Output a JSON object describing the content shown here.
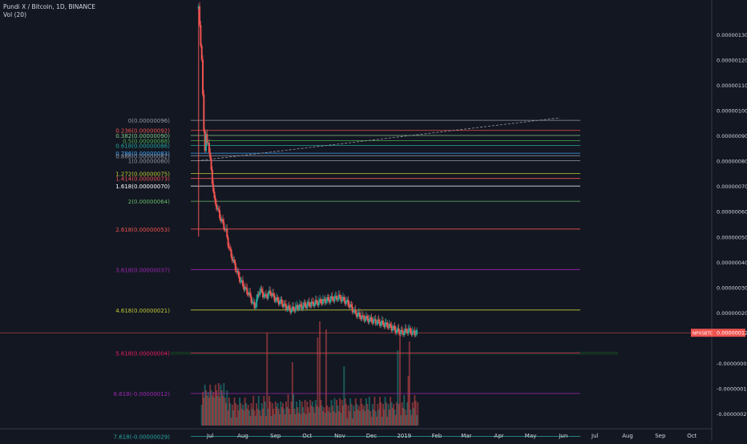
{
  "header": {
    "symbol_line": "Pundi X / Bitcoin, 1D, BINANCE",
    "indicator_line": "Vol (20)"
  },
  "colors": {
    "background": "#131722",
    "up": "#26a69a",
    "down": "#ef5350",
    "axis_text": "#d1d4dc",
    "price_tag": "#ef5350"
  },
  "chart_data": {
    "type": "line",
    "title": "",
    "xlabel": "",
    "ylabel": "",
    "ylim": [
      -2.5e-07,
      1.35e-06
    ],
    "price_axis_ticks": [
      {
        "v": 1.3e-06,
        "label": "0.00000130"
      },
      {
        "v": 1.2e-06,
        "label": "0.00000120"
      },
      {
        "v": 1.1e-06,
        "label": "0.00000110"
      },
      {
        "v": 1e-06,
        "label": "0.00000100"
      },
      {
        "v": 9e-07,
        "label": "0.00000090"
      },
      {
        "v": 8e-07,
        "label": "0.00000080"
      },
      {
        "v": 7e-07,
        "label": "0.00000070"
      },
      {
        "v": 6e-07,
        "label": "0.00000060"
      },
      {
        "v": 5e-07,
        "label": "0.00000050"
      },
      {
        "v": 4e-07,
        "label": "0.00000040"
      },
      {
        "v": 3e-07,
        "label": "0.00000030"
      },
      {
        "v": 2e-07,
        "label": "0.00000020"
      },
      {
        "v": -0.0,
        "label": "-0.00000000"
      },
      {
        "v": -1e-07,
        "label": "-0.00000010"
      },
      {
        "v": -2e-07,
        "label": "-0.00000020"
      }
    ],
    "time_axis_labels": [
      {
        "day": 8,
        "label": "Jul"
      },
      {
        "day": 39,
        "label": "Aug"
      },
      {
        "day": 70,
        "label": "Sep"
      },
      {
        "day": 100,
        "label": "Oct"
      },
      {
        "day": 131,
        "label": "Nov"
      },
      {
        "day": 161,
        "label": "Dec"
      },
      {
        "day": 192,
        "label": "2019"
      },
      {
        "day": 223,
        "label": "Feb"
      },
      {
        "day": 251,
        "label": "Mar"
      },
      {
        "day": 282,
        "label": "Apr"
      },
      {
        "day": 312,
        "label": "May"
      },
      {
        "day": 343,
        "label": "Jun"
      },
      {
        "day": 373,
        "label": "Jul"
      },
      {
        "day": 404,
        "label": "Aug"
      },
      {
        "day": 435,
        "label": "Sep"
      },
      {
        "day": 465,
        "label": "Oct"
      }
    ],
    "x_range_days": [
      -15,
      480
    ],
    "current_price": {
      "value": 1.2e-07,
      "label": "NPXSBTC",
      "price_label": "0.00000012"
    },
    "fib_levels": [
      {
        "label": "0(0.00000096)",
        "v": 9.6e-07,
        "color": "#9598a1"
      },
      {
        "label": "0.236(0.00000092)",
        "v": 9.2e-07,
        "color": "#ef5350"
      },
      {
        "label": "0.382(0.00000090)",
        "v": 9e-07,
        "color": "#81c784"
      },
      {
        "label": "0.5(0.00000088)",
        "v": 8.8e-07,
        "color": "#4caf50"
      },
      {
        "label": "0.618(0.00000086)",
        "v": 8.6e-07,
        "color": "#26a69a"
      },
      {
        "label": "0.786(0.00000083)",
        "v": 8.3e-07,
        "color": "#42a5f5"
      },
      {
        "label": "0.886(0.00000082)",
        "v": 8.2e-07,
        "color": "#9598a1"
      },
      {
        "label": "1(0.00000080)",
        "v": 8e-07,
        "color": "#9598a1"
      },
      {
        "label": "1.272(0.00000075)",
        "v": 7.5e-07,
        "color": "#c0ca33"
      },
      {
        "label": "1.414(0.00000073)",
        "v": 7.3e-07,
        "color": "#ef5350"
      },
      {
        "label": "1.618(0.00000070)",
        "v": 7e-07,
        "color": "#ffffff"
      },
      {
        "label": "2(0.00000064)",
        "v": 6.4e-07,
        "color": "#66bb6a"
      },
      {
        "label": "2.618(0.00000053)",
        "v": 5.3e-07,
        "color": "#ef5350"
      },
      {
        "label": "3.618(0.00000037)",
        "v": 3.7e-07,
        "color": "#9c27b0"
      },
      {
        "label": "4.618(0.00000021)",
        "v": 2.1e-07,
        "color": "#c0ca33"
      },
      {
        "label": "5.618(0.00000004)",
        "v": 4e-08,
        "color": "#e91e63"
      },
      {
        "label": "6.618(-0.00000012)",
        "v": -1.2e-07,
        "color": "#9c27b0"
      },
      {
        "label": "7.618(-0.00000029)",
        "v": -2.9e-07,
        "color": "#26a69a"
      }
    ],
    "trend_line": {
      "from": {
        "day": -4,
        "v": 8e-07
      },
      "to": {
        "day": 340,
        "v": 9.7e-07
      }
    },
    "support_zone": {
      "from_day": -15,
      "to_day": 395,
      "top": 4.5e-08,
      "bottom": 3.3e-08
    },
    "price_path": [
      {
        "day": -3,
        "v": 1.4e-06
      },
      {
        "day": 0,
        "v": 1.2e-06
      },
      {
        "day": 1,
        "v": 1.05e-06
      },
      {
        "day": 2,
        "v": 9.2e-07
      },
      {
        "day": 3,
        "v": 8.5e-07
      },
      {
        "day": 4,
        "v": 9e-07
      },
      {
        "day": 5,
        "v": 8.6e-07
      },
      {
        "day": 6,
        "v": 8.8e-07
      },
      {
        "day": 8,
        "v": 8e-07
      },
      {
        "day": 10,
        "v": 7.2e-07
      },
      {
        "day": 12,
        "v": 6.4e-07
      },
      {
        "day": 14,
        "v": 6.2e-07
      },
      {
        "day": 17,
        "v": 5.8e-07
      },
      {
        "day": 20,
        "v": 5.5e-07
      },
      {
        "day": 23,
        "v": 5.2e-07
      },
      {
        "day": 26,
        "v": 4.5e-07
      },
      {
        "day": 30,
        "v": 4e-07
      },
      {
        "day": 35,
        "v": 3.4e-07
      },
      {
        "day": 40,
        "v": 3e-07
      },
      {
        "day": 45,
        "v": 2.7e-07
      },
      {
        "day": 50,
        "v": 2.2e-07
      },
      {
        "day": 55,
        "v": 2.9e-07
      },
      {
        "day": 60,
        "v": 2.6e-07
      },
      {
        "day": 65,
        "v": 2.8e-07
      },
      {
        "day": 70,
        "v": 2.5e-07
      },
      {
        "day": 75,
        "v": 2.4e-07
      },
      {
        "day": 80,
        "v": 2.2e-07
      },
      {
        "day": 85,
        "v": 2.1e-07
      },
      {
        "day": 90,
        "v": 2.2e-07
      },
      {
        "day": 100,
        "v": 2.3e-07
      },
      {
        "day": 110,
        "v": 2.4e-07
      },
      {
        "day": 120,
        "v": 2.5e-07
      },
      {
        "day": 130,
        "v": 2.6e-07
      },
      {
        "day": 138,
        "v": 2.4e-07
      },
      {
        "day": 145,
        "v": 2e-07
      },
      {
        "day": 152,
        "v": 1.8e-07
      },
      {
        "day": 160,
        "v": 1.7e-07
      },
      {
        "day": 168,
        "v": 1.6e-07
      },
      {
        "day": 176,
        "v": 1.5e-07
      },
      {
        "day": 184,
        "v": 1.3e-07
      },
      {
        "day": 190,
        "v": 1.2e-07
      },
      {
        "day": 196,
        "v": 1.3e-07
      },
      {
        "day": 200,
        "v": 1.2e-07
      },
      {
        "day": 205,
        "v": 1.2e-07
      }
    ]
  }
}
